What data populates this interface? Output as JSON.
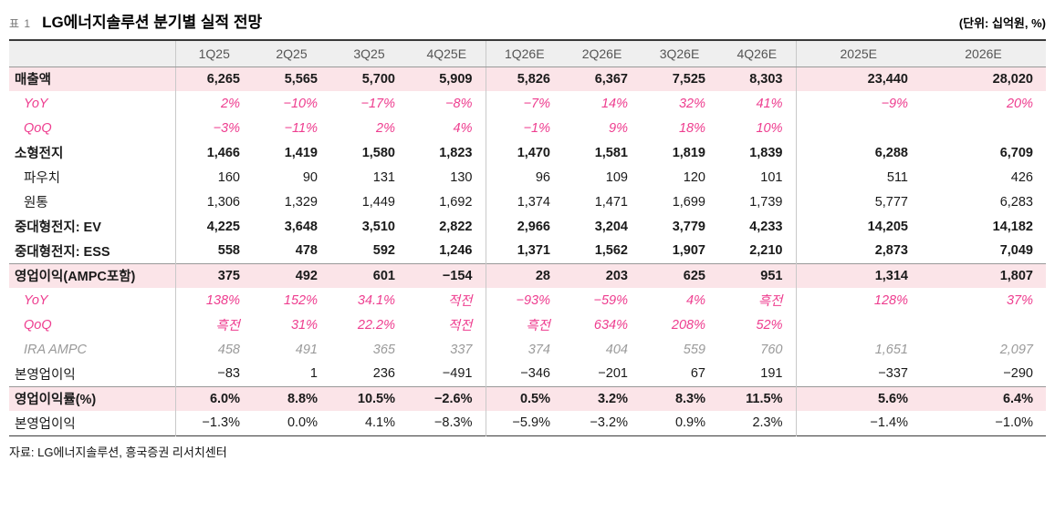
{
  "meta": {
    "table_label": "표 1",
    "title": "LG에너지솔루션 분기별 실적 전망",
    "unit_note": "(단위: 십억원, %)",
    "source": "자료: LG에너지솔루션, 흥국증권 리서치센터"
  },
  "colors": {
    "highlight_row_bg": "#fbe4e8",
    "pink_text": "#ee3d8f",
    "header_bg": "#efefef",
    "top_rule": "#3a3a3a"
  },
  "table": {
    "type": "table",
    "columns": [
      "",
      "1Q25",
      "2Q25",
      "3Q25",
      "4Q25E",
      "1Q26E",
      "2Q26E",
      "3Q26E",
      "4Q26E",
      "2025E",
      "2026E"
    ],
    "rows": [
      {
        "label": "매출액",
        "cls": "highlight",
        "indent": 0,
        "border_top": false,
        "values": [
          "6,265",
          "5,565",
          "5,700",
          "5,909",
          "5,826",
          "6,367",
          "7,525",
          "8,303",
          "23,440",
          "28,020"
        ]
      },
      {
        "label": "YoY",
        "cls": "pink",
        "indent": 1,
        "border_top": false,
        "values": [
          "2%",
          "−10%",
          "−17%",
          "−8%",
          "−7%",
          "14%",
          "32%",
          "41%",
          "−9%",
          "20%"
        ]
      },
      {
        "label": "QoQ",
        "cls": "pink",
        "indent": 1,
        "border_top": false,
        "values": [
          "−3%",
          "−11%",
          "2%",
          "4%",
          "−1%",
          "9%",
          "18%",
          "10%",
          "",
          ""
        ]
      },
      {
        "label": "소형전지",
        "cls": "bold",
        "indent": 0,
        "border_top": false,
        "values": [
          "1,466",
          "1,419",
          "1,580",
          "1,823",
          "1,470",
          "1,581",
          "1,819",
          "1,839",
          "6,288",
          "6,709"
        ]
      },
      {
        "label": "파우치",
        "cls": "normal",
        "indent": 1,
        "border_top": false,
        "values": [
          "160",
          "90",
          "131",
          "130",
          "96",
          "109",
          "120",
          "101",
          "511",
          "426"
        ]
      },
      {
        "label": "원통",
        "cls": "normal",
        "indent": 1,
        "border_top": false,
        "values": [
          "1,306",
          "1,329",
          "1,449",
          "1,692",
          "1,374",
          "1,471",
          "1,699",
          "1,739",
          "5,777",
          "6,283"
        ]
      },
      {
        "label": "중대형전지: EV",
        "cls": "bold",
        "indent": 0,
        "border_top": false,
        "values": [
          "4,225",
          "3,648",
          "3,510",
          "2,822",
          "2,966",
          "3,204",
          "3,779",
          "4,233",
          "14,205",
          "14,182"
        ]
      },
      {
        "label": "중대형전지: ESS",
        "cls": "bold",
        "indent": 0,
        "border_top": false,
        "values": [
          "558",
          "478",
          "592",
          "1,246",
          "1,371",
          "1,562",
          "1,907",
          "2,210",
          "2,873",
          "7,049"
        ]
      },
      {
        "label": "영업이익(AMPC포함)",
        "cls": "highlight",
        "indent": 0,
        "border_top": true,
        "values": [
          "375",
          "492",
          "601",
          "−154",
          "28",
          "203",
          "625",
          "951",
          "1,314",
          "1,807"
        ]
      },
      {
        "label": "YoY",
        "cls": "pink",
        "indent": 1,
        "border_top": false,
        "values": [
          "138%",
          "152%",
          "34.1%",
          "적전",
          "−93%",
          "−59%",
          "4%",
          "흑전",
          "128%",
          "37%"
        ]
      },
      {
        "label": "QoQ",
        "cls": "pink",
        "indent": 1,
        "border_top": false,
        "values": [
          "흑전",
          "31%",
          "22.2%",
          "적전",
          "흑전",
          "634%",
          "208%",
          "52%",
          "",
          ""
        ]
      },
      {
        "label": "IRA AMPC",
        "cls": "gray-italic",
        "indent": 1,
        "border_top": false,
        "values": [
          "458",
          "491",
          "365",
          "337",
          "374",
          "404",
          "559",
          "760",
          "1,651",
          "2,097"
        ]
      },
      {
        "label": "본영업이익",
        "cls": "normal",
        "indent": 0,
        "border_top": false,
        "values": [
          "−83",
          "1",
          "236",
          "−491",
          "−346",
          "−201",
          "67",
          "191",
          "−337",
          "−290"
        ]
      },
      {
        "label": "영업이익률(%)",
        "cls": "highlight",
        "indent": 0,
        "border_top": true,
        "values": [
          "6.0%",
          "8.8%",
          "10.5%",
          "−2.6%",
          "0.5%",
          "3.2%",
          "8.3%",
          "11.5%",
          "5.6%",
          "6.4%"
        ]
      },
      {
        "label": "본영업이익",
        "cls": "normal",
        "indent": 0,
        "border_top": false,
        "values": [
          "−1.3%",
          "0.0%",
          "4.1%",
          "−8.3%",
          "−5.9%",
          "−3.2%",
          "0.9%",
          "2.3%",
          "−1.4%",
          "−1.0%"
        ]
      }
    ]
  }
}
